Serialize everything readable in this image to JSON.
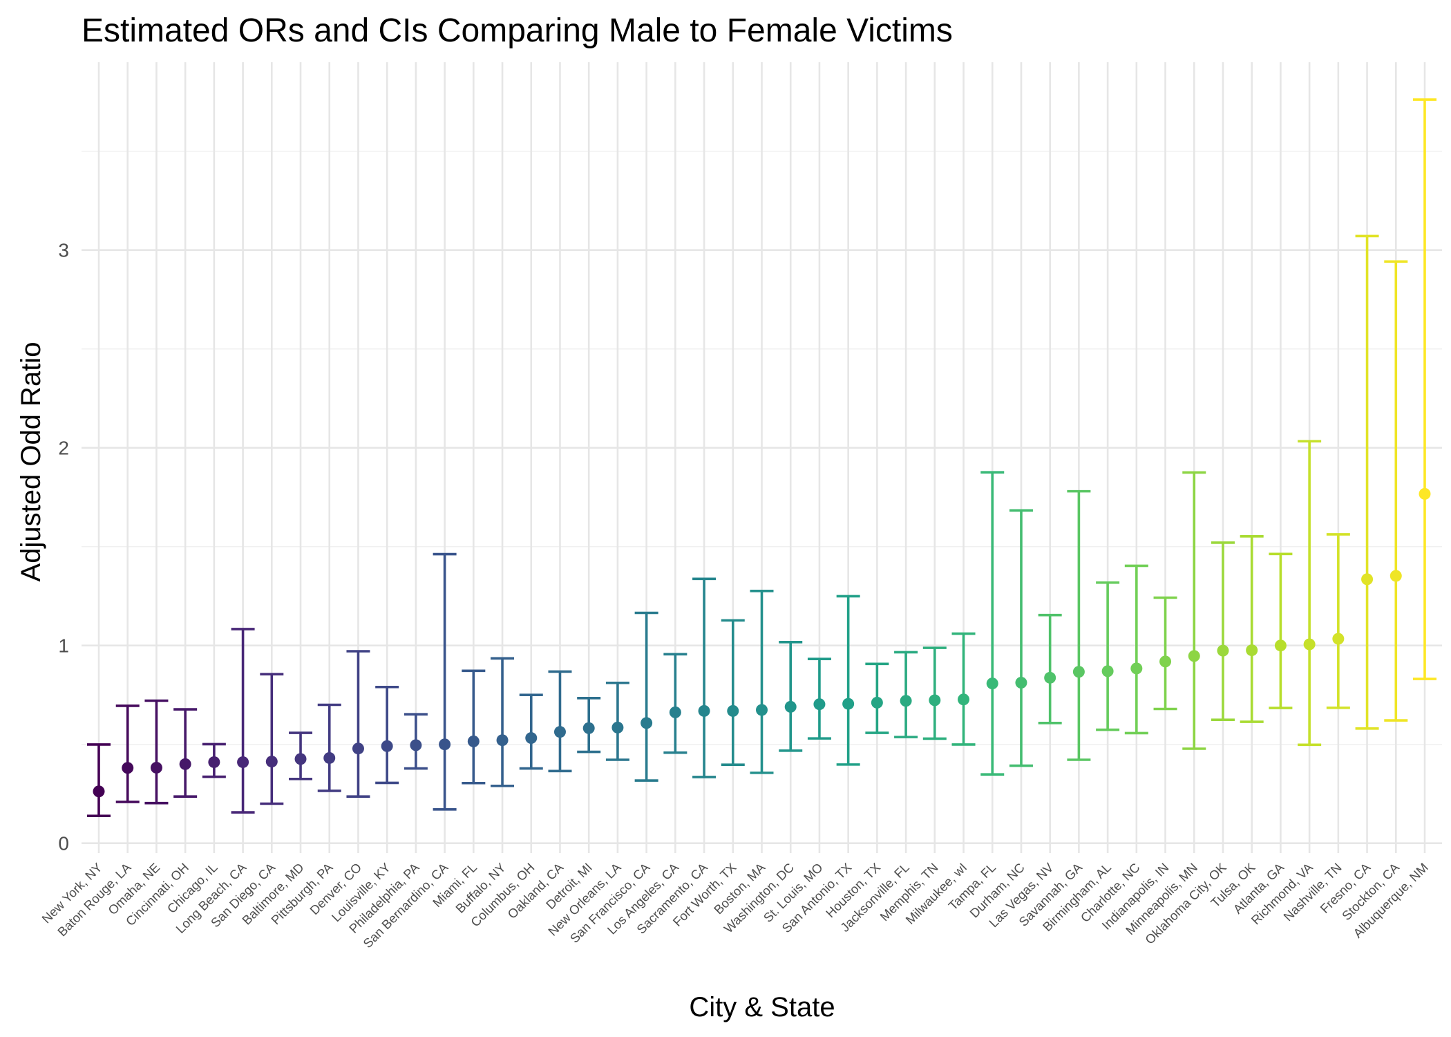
{
  "chart_data": {
    "type": "errorbar",
    "title": "Estimated ORs and CIs Comparing Male to Female Victims",
    "xlabel": "City & State",
    "ylabel": "Adjusted Odd Ratio",
    "ylim": [
      -0.05,
      3.95
    ],
    "yticks": [
      0,
      1,
      2,
      3
    ],
    "grid": true,
    "legend": "none",
    "palette": "viridis",
    "points": [
      {
        "city": "New York, NY",
        "or": 0.262,
        "lower": 0.138,
        "upper": 0.499
      },
      {
        "city": "Baton Rouge, LA",
        "or": 0.381,
        "lower": 0.209,
        "upper": 0.695
      },
      {
        "city": "Omaha, NE",
        "or": 0.382,
        "lower": 0.203,
        "upper": 0.721
      },
      {
        "city": "Cincinnati, OH",
        "or": 0.4,
        "lower": 0.236,
        "upper": 0.677
      },
      {
        "city": "Chicago, IL",
        "or": 0.41,
        "lower": 0.336,
        "upper": 0.501
      },
      {
        "city": "Long Beach, CA",
        "or": 0.41,
        "lower": 0.156,
        "upper": 1.083
      },
      {
        "city": "San Diego, CA",
        "or": 0.413,
        "lower": 0.2,
        "upper": 0.855
      },
      {
        "city": "Baltimore, MD",
        "or": 0.426,
        "lower": 0.325,
        "upper": 0.558
      },
      {
        "city": "Pittsburgh, PA",
        "or": 0.431,
        "lower": 0.265,
        "upper": 0.7
      },
      {
        "city": "Denver, CO",
        "or": 0.479,
        "lower": 0.236,
        "upper": 0.971
      },
      {
        "city": "Louisville, KY",
        "or": 0.491,
        "lower": 0.305,
        "upper": 0.79
      },
      {
        "city": "Philadelphia, PA",
        "or": 0.496,
        "lower": 0.378,
        "upper": 0.652
      },
      {
        "city": "San Bernardino, CA",
        "or": 0.5,
        "lower": 0.171,
        "upper": 1.462
      },
      {
        "city": "Miami, FL",
        "or": 0.515,
        "lower": 0.304,
        "upper": 0.872
      },
      {
        "city": "Buffalo, NY",
        "or": 0.521,
        "lower": 0.29,
        "upper": 0.935
      },
      {
        "city": "Columbus, OH",
        "or": 0.532,
        "lower": 0.378,
        "upper": 0.75
      },
      {
        "city": "Oakland, CA",
        "or": 0.563,
        "lower": 0.365,
        "upper": 0.868
      },
      {
        "city": "Detroit, MI",
        "or": 0.582,
        "lower": 0.462,
        "upper": 0.734
      },
      {
        "city": "New Orleans, LA",
        "or": 0.585,
        "lower": 0.422,
        "upper": 0.811
      },
      {
        "city": "San Francisco, CA",
        "or": 0.608,
        "lower": 0.317,
        "upper": 1.165
      },
      {
        "city": "Los Angeles, CA",
        "or": 0.662,
        "lower": 0.458,
        "upper": 0.956
      },
      {
        "city": "Sacramento, CA",
        "or": 0.669,
        "lower": 0.335,
        "upper": 1.337
      },
      {
        "city": "Fort Worth, TX",
        "or": 0.669,
        "lower": 0.397,
        "upper": 1.127
      },
      {
        "city": "Boston, MA",
        "or": 0.674,
        "lower": 0.356,
        "upper": 1.276
      },
      {
        "city": "Washington, DC",
        "or": 0.69,
        "lower": 0.468,
        "upper": 1.017
      },
      {
        "city": "St. Louis, MO",
        "or": 0.703,
        "lower": 0.53,
        "upper": 0.932
      },
      {
        "city": "San Antonio, TX",
        "or": 0.705,
        "lower": 0.398,
        "upper": 1.249
      },
      {
        "city": "Houston, TX",
        "or": 0.711,
        "lower": 0.558,
        "upper": 0.907
      },
      {
        "city": "Jacksonville, FL",
        "or": 0.72,
        "lower": 0.537,
        "upper": 0.966
      },
      {
        "city": "Memphis, TN",
        "or": 0.723,
        "lower": 0.529,
        "upper": 0.988
      },
      {
        "city": "Milwaukee, wI",
        "or": 0.727,
        "lower": 0.499,
        "upper": 1.06
      },
      {
        "city": "Tampa, FL",
        "or": 0.808,
        "lower": 0.348,
        "upper": 1.876
      },
      {
        "city": "Durham, NC",
        "or": 0.812,
        "lower": 0.392,
        "upper": 1.683
      },
      {
        "city": "Las Vegas, NV",
        "or": 0.837,
        "lower": 0.608,
        "upper": 1.154
      },
      {
        "city": "Savannah, GA",
        "or": 0.867,
        "lower": 0.422,
        "upper": 1.78
      },
      {
        "city": "Birmingham, AL",
        "or": 0.87,
        "lower": 0.574,
        "upper": 1.318
      },
      {
        "city": "Charlotte, NC",
        "or": 0.884,
        "lower": 0.557,
        "upper": 1.403
      },
      {
        "city": "Indianapolis, IN",
        "or": 0.919,
        "lower": 0.679,
        "upper": 1.242
      },
      {
        "city": "Minneapolis, MN",
        "or": 0.947,
        "lower": 0.478,
        "upper": 1.875
      },
      {
        "city": "Oklahoma City, OK",
        "or": 0.974,
        "lower": 0.624,
        "upper": 1.52
      },
      {
        "city": "Tulsa, OK",
        "or": 0.976,
        "lower": 0.614,
        "upper": 1.552
      },
      {
        "city": "Atlanta, GA",
        "or": 1.0,
        "lower": 0.684,
        "upper": 1.463
      },
      {
        "city": "Richmond, VA",
        "or": 1.006,
        "lower": 0.498,
        "upper": 2.033
      },
      {
        "city": "Nashville, TN",
        "or": 1.034,
        "lower": 0.685,
        "upper": 1.562
      },
      {
        "city": "Fresno, CA",
        "or": 1.335,
        "lower": 0.58,
        "upper": 3.071
      },
      {
        "city": "Stockton, CA",
        "or": 1.352,
        "lower": 0.621,
        "upper": 2.942
      },
      {
        "city": "Albuquerque, NM",
        "or": 1.767,
        "lower": 0.831,
        "upper": 3.761
      }
    ]
  }
}
